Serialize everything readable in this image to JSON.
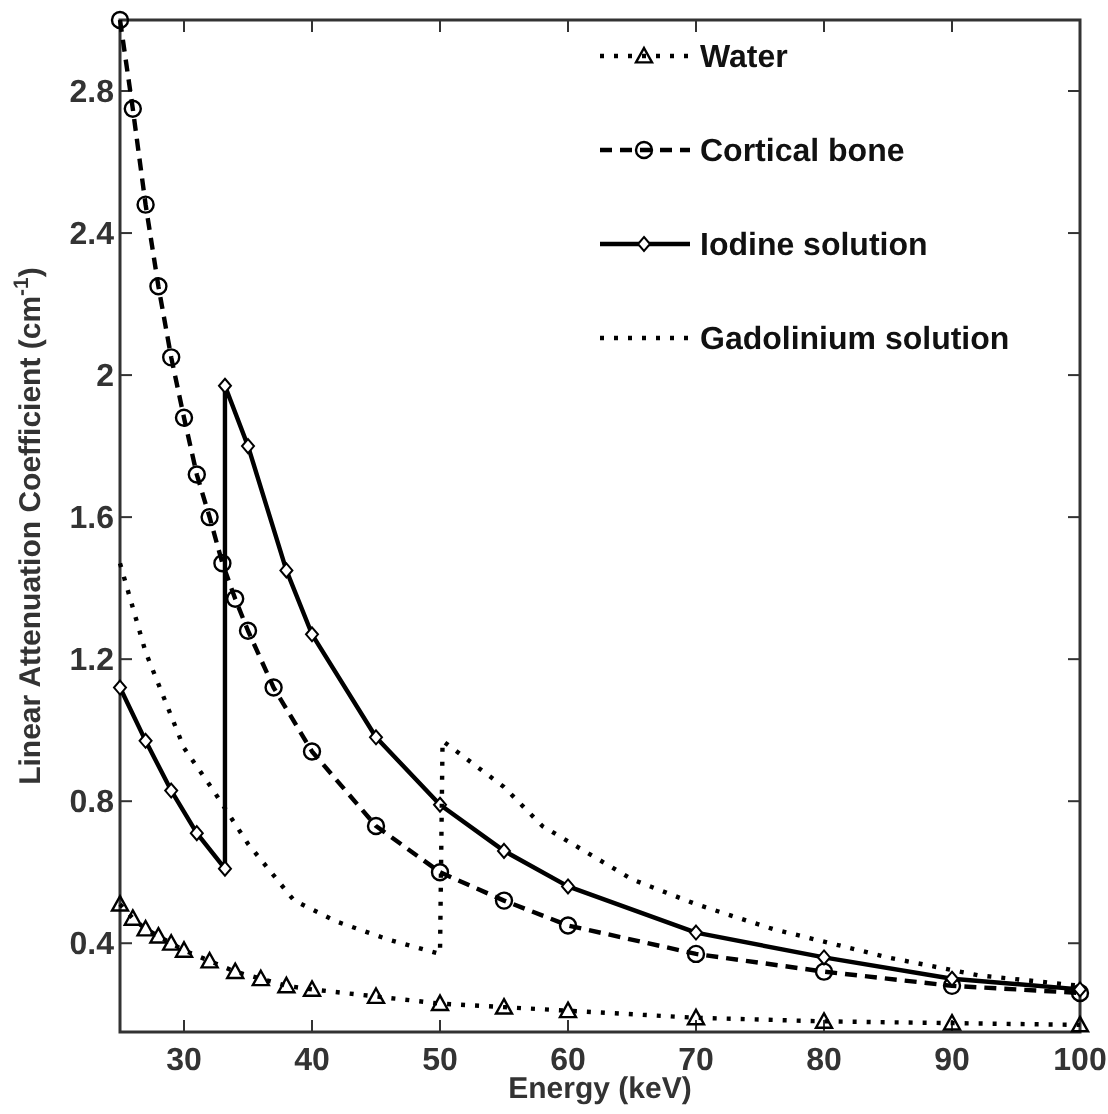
{
  "chart_data": {
    "type": "line",
    "xlabel": "Energy (keV)",
    "ylabel": "Linear Attenuation Coefficient (cm$^{-1}$)",
    "xlim": [
      25,
      100
    ],
    "ylim": [
      0.15,
      3.0
    ],
    "xticks": [
      30,
      40,
      50,
      60,
      70,
      80,
      90,
      100
    ],
    "yticks": [
      0.4,
      0.8,
      1.2,
      1.6,
      2,
      2.4,
      2.8
    ],
    "grid": false,
    "legend": "top right",
    "series": [
      {
        "name": "Water",
        "color": "#000000",
        "marker": "triangle",
        "line_style": "dotted",
        "x": [
          25,
          26,
          27,
          28,
          29,
          30,
          32,
          34,
          36,
          38,
          40,
          45,
          50,
          55,
          60,
          70,
          80,
          90,
          100
        ],
        "values": [
          0.51,
          0.47,
          0.44,
          0.42,
          0.4,
          0.38,
          0.35,
          0.32,
          0.3,
          0.28,
          0.27,
          0.25,
          0.23,
          0.22,
          0.21,
          0.19,
          0.18,
          0.175,
          0.17
        ]
      },
      {
        "name": "Cortical bone",
        "color": "#000000",
        "marker": "circle",
        "line_style": "dashed",
        "x": [
          25,
          26,
          27,
          28,
          29,
          30,
          31,
          32,
          33,
          34,
          35,
          37,
          40,
          45,
          50,
          55,
          60,
          70,
          80,
          90,
          100
        ],
        "values": [
          3.0,
          2.75,
          2.48,
          2.25,
          2.05,
          1.88,
          1.72,
          1.6,
          1.47,
          1.37,
          1.28,
          1.12,
          0.94,
          0.73,
          0.6,
          0.52,
          0.45,
          0.37,
          0.32,
          0.28,
          0.26
        ]
      },
      {
        "name": "Iodine solution",
        "color": "#000000",
        "marker": "diamond",
        "line_style": "solid",
        "x": [
          25,
          27,
          29,
          31,
          33.2,
          33.2,
          35,
          38,
          40,
          45,
          50,
          55,
          60,
          70,
          80,
          90,
          100
        ],
        "values": [
          1.12,
          0.97,
          0.83,
          0.71,
          0.61,
          1.97,
          1.8,
          1.45,
          1.27,
          0.98,
          0.79,
          0.66,
          0.56,
          0.43,
          0.36,
          0.3,
          0.27
        ]
      },
      {
        "name": "Gadolinium solution",
        "color": "#000000",
        "marker": "none",
        "line_style": "dotted",
        "x": [
          25,
          27,
          30,
          32.3,
          35,
          38.6,
          42,
          46,
          50,
          50.2,
          55,
          58,
          65,
          70,
          76,
          85,
          92,
          100
        ],
        "values": [
          1.47,
          1.22,
          0.95,
          0.83,
          0.68,
          0.52,
          0.46,
          0.41,
          0.37,
          0.97,
          0.84,
          0.73,
          0.58,
          0.51,
          0.44,
          0.36,
          0.31,
          0.28
        ]
      }
    ]
  }
}
